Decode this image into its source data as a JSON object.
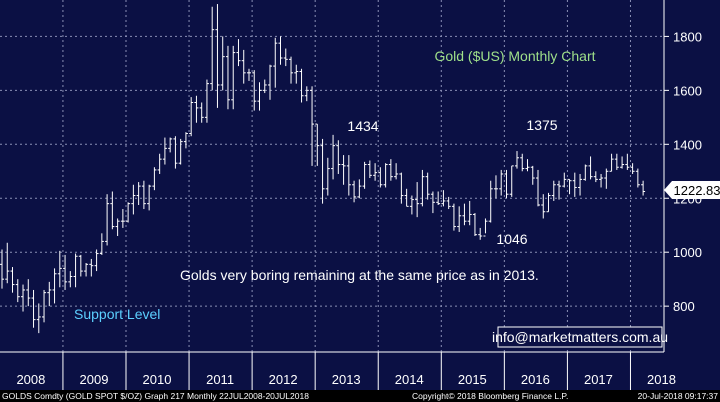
{
  "chart_data": {
    "type": "ohlc",
    "title": "Gold ($US) Monthly Chart",
    "annotations": {
      "label_1434": "1434",
      "label_1375": "1375",
      "label_1046": "1046",
      "comment": "Golds very boring remaining at the same price as in 2013.",
      "support": "Support Level"
    },
    "last_price": "1222.83",
    "watermark": "info@marketmatters.com.au",
    "x_labels": [
      "2008",
      "2009",
      "2010",
      "2011",
      "2012",
      "2013",
      "2014",
      "2015",
      "2016",
      "2017",
      "2018"
    ],
    "y_ticks": [
      800,
      1000,
      1200,
      1400,
      1600,
      1800
    ],
    "ylim": [
      630,
      1935
    ],
    "footer_left": "GOLDS Comdty (GOLD SPOT $/OZ) Graph 217  Monthly 22JUL2008-20JUL2018",
    "footer_center": "Copyright© 2018 Bloomberg Finance L.P.",
    "footer_right": "20-Jul-2018 09:17:37",
    "colors": {
      "background": "#0b1044",
      "bars": "#ffffff",
      "title": "#9fe08a",
      "support": "#5cd0ff",
      "grid": "#8a8fb5"
    },
    "series": [
      {
        "values": [
          [
            955,
            900,
            1010,
            865
          ],
          [
            900,
            930,
            1035,
            885
          ],
          [
            930,
            880,
            945,
            850
          ],
          [
            880,
            835,
            900,
            815
          ],
          [
            835,
            860,
            880,
            780
          ],
          [
            860,
            830,
            900,
            800
          ],
          [
            830,
            750,
            860,
            720
          ],
          [
            750,
            760,
            810,
            700
          ],
          [
            760,
            850,
            860,
            740
          ],
          [
            850,
            860,
            890,
            800
          ],
          [
            860,
            920,
            940,
            810
          ],
          [
            920,
            940,
            1005,
            870
          ],
          [
            940,
            890,
            990,
            860
          ],
          [
            890,
            910,
            930,
            870
          ],
          [
            910,
            985,
            995,
            870
          ],
          [
            985,
            930,
            990,
            910
          ],
          [
            930,
            955,
            960,
            910
          ],
          [
            955,
            950,
            975,
            910
          ],
          [
            950,
            995,
            1010,
            930
          ],
          [
            995,
            1040,
            1070,
            990
          ],
          [
            1040,
            1180,
            1215,
            1025
          ],
          [
            1180,
            1095,
            1225,
            1085
          ],
          [
            1095,
            1115,
            1125,
            1060
          ],
          [
            1115,
            1115,
            1160,
            1090
          ],
          [
            1115,
            1180,
            1185,
            1110
          ],
          [
            1180,
            1210,
            1250,
            1140
          ],
          [
            1210,
            1245,
            1260,
            1175
          ],
          [
            1245,
            1180,
            1265,
            1160
          ],
          [
            1180,
            1245,
            1250,
            1155
          ],
          [
            1245,
            1305,
            1315,
            1230
          ],
          [
            1305,
            1345,
            1365,
            1290
          ],
          [
            1345,
            1385,
            1425,
            1325
          ],
          [
            1385,
            1420,
            1425,
            1370
          ],
          [
            1420,
            1330,
            1430,
            1310
          ],
          [
            1330,
            1410,
            1420,
            1325
          ],
          [
            1410,
            1440,
            1445,
            1385
          ],
          [
            1440,
            1555,
            1575,
            1430
          ],
          [
            1555,
            1535,
            1580,
            1480
          ],
          [
            1535,
            1500,
            1555,
            1480
          ],
          [
            1500,
            1625,
            1640,
            1480
          ],
          [
            1625,
            1825,
            1910,
            1600
          ],
          [
            1825,
            1620,
            1920,
            1535
          ],
          [
            1620,
            1725,
            1800,
            1600
          ],
          [
            1725,
            1565,
            1765,
            1530
          ],
          [
            1565,
            1740,
            1765,
            1530
          ],
          [
            1740,
            1710,
            1790,
            1690
          ],
          [
            1710,
            1665,
            1750,
            1625
          ],
          [
            1665,
            1665,
            1680,
            1635
          ],
          [
            1665,
            1560,
            1675,
            1525
          ],
          [
            1560,
            1600,
            1630,
            1525
          ],
          [
            1600,
            1620,
            1640,
            1590
          ],
          [
            1620,
            1690,
            1695,
            1565
          ],
          [
            1690,
            1775,
            1795,
            1610
          ],
          [
            1775,
            1720,
            1800,
            1695
          ],
          [
            1720,
            1715,
            1755,
            1690
          ],
          [
            1715,
            1665,
            1725,
            1625
          ],
          [
            1665,
            1670,
            1695,
            1625
          ],
          [
            1670,
            1580,
            1680,
            1555
          ],
          [
            1580,
            1600,
            1615,
            1560
          ],
          [
            1600,
            1475,
            1615,
            1320
          ],
          [
            1475,
            1395,
            1475,
            1320
          ],
          [
            1395,
            1235,
            1420,
            1180
          ],
          [
            1235,
            1310,
            1350,
            1210
          ],
          [
            1310,
            1395,
            1435,
            1270
          ],
          [
            1395,
            1325,
            1415,
            1290
          ],
          [
            1325,
            1320,
            1360,
            1250
          ],
          [
            1320,
            1250,
            1360,
            1210
          ],
          [
            1250,
            1205,
            1265,
            1185
          ],
          [
            1205,
            1245,
            1270,
            1200
          ],
          [
            1245,
            1325,
            1335,
            1235
          ],
          [
            1325,
            1285,
            1340,
            1275
          ],
          [
            1285,
            1295,
            1330,
            1265
          ],
          [
            1295,
            1250,
            1315,
            1240
          ],
          [
            1250,
            1325,
            1330,
            1240
          ],
          [
            1325,
            1280,
            1345,
            1265
          ],
          [
            1280,
            1290,
            1330,
            1270
          ],
          [
            1290,
            1210,
            1295,
            1180
          ],
          [
            1210,
            1170,
            1235,
            1170
          ],
          [
            1170,
            1195,
            1210,
            1140
          ],
          [
            1195,
            1180,
            1260,
            1130
          ],
          [
            1180,
            1280,
            1305,
            1170
          ],
          [
            1280,
            1215,
            1295,
            1195
          ],
          [
            1215,
            1185,
            1225,
            1145
          ],
          [
            1185,
            1180,
            1225,
            1175
          ],
          [
            1180,
            1190,
            1230,
            1170
          ],
          [
            1190,
            1170,
            1205,
            1160
          ],
          [
            1170,
            1095,
            1180,
            1080
          ],
          [
            1095,
            1135,
            1170,
            1075
          ],
          [
            1135,
            1115,
            1180,
            1100
          ],
          [
            1115,
            1140,
            1190,
            1100
          ],
          [
            1140,
            1065,
            1145,
            1060
          ],
          [
            1065,
            1060,
            1090,
            1046
          ],
          [
            1060,
            1115,
            1125,
            1070
          ],
          [
            1115,
            1235,
            1265,
            1110
          ],
          [
            1235,
            1235,
            1285,
            1200
          ],
          [
            1235,
            1290,
            1305,
            1210
          ],
          [
            1290,
            1215,
            1305,
            1200
          ],
          [
            1215,
            1320,
            1320,
            1205
          ],
          [
            1320,
            1350,
            1375,
            1310
          ],
          [
            1350,
            1310,
            1365,
            1300
          ],
          [
            1310,
            1315,
            1345,
            1300
          ],
          [
            1315,
            1275,
            1320,
            1250
          ],
          [
            1275,
            1175,
            1305,
            1170
          ],
          [
            1175,
            1150,
            1215,
            1125
          ],
          [
            1150,
            1210,
            1220,
            1150
          ],
          [
            1210,
            1250,
            1265,
            1190
          ],
          [
            1250,
            1245,
            1265,
            1195
          ],
          [
            1245,
            1270,
            1295,
            1240
          ],
          [
            1270,
            1265,
            1270,
            1215
          ],
          [
            1265,
            1240,
            1295,
            1205
          ],
          [
            1240,
            1270,
            1290,
            1210
          ],
          [
            1270,
            1320,
            1325,
            1265
          ],
          [
            1320,
            1280,
            1355,
            1270
          ],
          [
            1280,
            1270,
            1300,
            1260
          ],
          [
            1270,
            1275,
            1290,
            1240
          ],
          [
            1275,
            1300,
            1310,
            1235
          ],
          [
            1300,
            1345,
            1365,
            1300
          ],
          [
            1345,
            1315,
            1365,
            1305
          ],
          [
            1315,
            1325,
            1355,
            1310
          ],
          [
            1325,
            1315,
            1365,
            1305
          ],
          [
            1315,
            1300,
            1330,
            1290
          ],
          [
            1300,
            1250,
            1310,
            1240
          ],
          [
            1250,
            1225,
            1265,
            1210
          ]
        ]
      }
    ]
  }
}
